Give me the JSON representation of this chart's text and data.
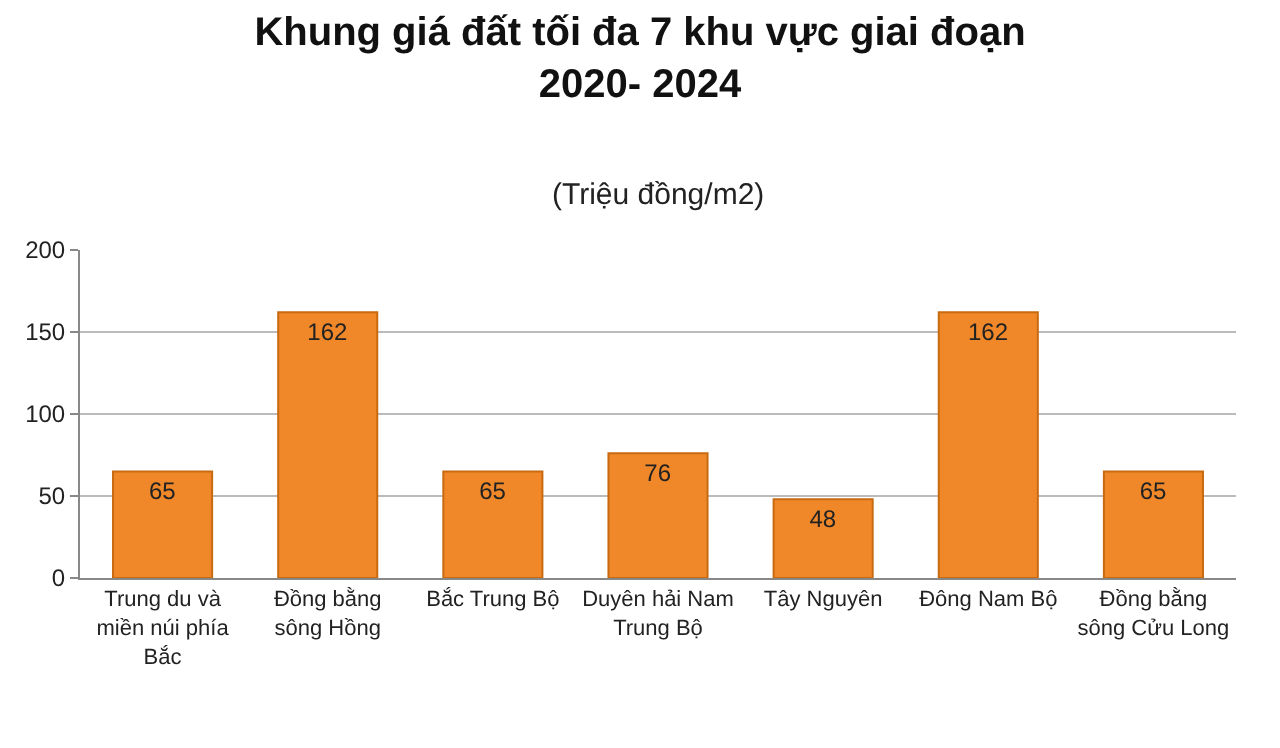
{
  "chart_data": {
    "type": "bar",
    "title": "Khung giá đất tối đa 7 khu vực giai đoạn\n2020- 2024",
    "subtitle": "(Triệu đồng/m2)",
    "categories": [
      "Trung du và miền núi phía Bắc",
      "Đồng bằng sông Hồng",
      "Bắc Trung Bộ",
      "Duyên hải Nam Trung Bộ",
      "Tây Nguyên",
      "Đông Nam Bộ",
      "Đồng bằng sông Cửu Long"
    ],
    "values": [
      65,
      162,
      65,
      76,
      48,
      162,
      65
    ],
    "color": "#f0882a",
    "ylim": [
      0,
      200
    ],
    "yticks": [
      0,
      50,
      100,
      150,
      200
    ],
    "grid": "y",
    "data_labels": true
  }
}
